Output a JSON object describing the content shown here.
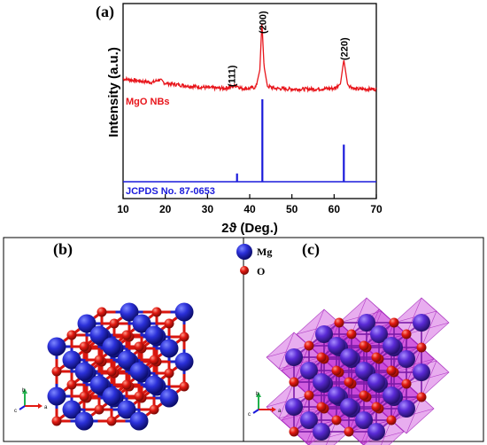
{
  "panel_a": {
    "label": "(a)",
    "ylabel": "Intensity (a.u.)",
    "xlabel": "2ϑ (Deg.)",
    "sample_label": "MgO NBs",
    "reference_label": "JCPDS No. 87-0653",
    "peak_labels": [
      "(111)",
      "(200)",
      "(220)"
    ],
    "colors": {
      "sample": "#e8151b",
      "reference": "#1a1adb"
    }
  },
  "panel_b": {
    "label": "(b)"
  },
  "panel_c": {
    "label": "(c)"
  },
  "legend": {
    "mg_label": "Mg",
    "o_label": "O"
  },
  "axes_triad": {
    "a": "a",
    "b": "b",
    "c": "c"
  },
  "chart_data": {
    "type": "line",
    "xlabel": "2ϑ (Deg.)",
    "ylabel": "Intensity (a.u.)",
    "xlim": [
      10,
      70
    ],
    "xticks": [
      10,
      20,
      30,
      40,
      50,
      60,
      70
    ],
    "series": [
      {
        "name": "MgO NBs",
        "color": "#e8151b",
        "x": [
          10,
          14,
          17,
          18.5,
          20,
          23,
          26,
          30,
          34,
          36.9,
          38,
          40,
          41.5,
          42.4,
          42.9,
          43.4,
          44.2,
          46,
          50,
          55,
          60,
          61.5,
          62.3,
          63.2,
          65,
          70
        ],
        "y": [
          0.23,
          0.2,
          0.18,
          0.22,
          0.17,
          0.15,
          0.13,
          0.11,
          0.1,
          0.14,
          0.1,
          0.1,
          0.12,
          0.35,
          1.0,
          0.4,
          0.13,
          0.1,
          0.09,
          0.09,
          0.1,
          0.16,
          0.49,
          0.15,
          0.09,
          0.09
        ]
      },
      {
        "name": "JCPDS No. 87-0653",
        "color": "#1a1adb",
        "type": "stick",
        "x": [
          37.0,
          43.0,
          62.3
        ],
        "y": [
          0.1,
          1.0,
          0.45
        ]
      }
    ],
    "annotations": [
      {
        "text": "(111)",
        "x": 37.0
      },
      {
        "text": "(200)",
        "x": 43.0
      },
      {
        "text": "(220)",
        "x": 62.3
      }
    ]
  }
}
